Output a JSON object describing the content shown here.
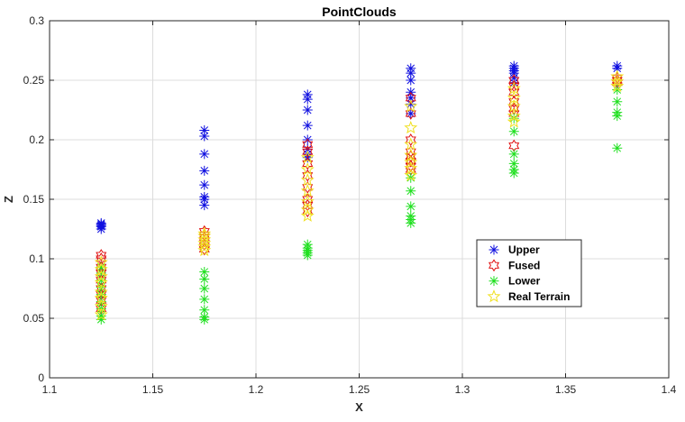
{
  "chart_data": {
    "type": "scatter",
    "title": "PointClouds",
    "xlabel": "X",
    "ylabel": "Z",
    "xlim": [
      1.1,
      1.4
    ],
    "ylim": [
      0,
      0.3
    ],
    "xticks": [
      "1.1",
      "1.15",
      "1.2",
      "1.25",
      "1.3",
      "1.35",
      "1.4"
    ],
    "yticks": [
      "0",
      "0.05",
      "0.1",
      "0.15",
      "0.2",
      "0.25",
      "0.3"
    ],
    "grid": true,
    "legend_position": "lower-right",
    "series": [
      {
        "name": "Upper",
        "marker": "asterisk",
        "color": "#1010e0",
        "points": [
          [
            1.125,
            0.125
          ],
          [
            1.125,
            0.127
          ],
          [
            1.125,
            0.128
          ],
          [
            1.125,
            0.129
          ],
          [
            1.125,
            0.13
          ],
          [
            1.175,
            0.145
          ],
          [
            1.175,
            0.15
          ],
          [
            1.175,
            0.152
          ],
          [
            1.175,
            0.162
          ],
          [
            1.175,
            0.174
          ],
          [
            1.175,
            0.188
          ],
          [
            1.175,
            0.203
          ],
          [
            1.175,
            0.208
          ],
          [
            1.225,
            0.185
          ],
          [
            1.225,
            0.188
          ],
          [
            1.225,
            0.192
          ],
          [
            1.225,
            0.2
          ],
          [
            1.225,
            0.212
          ],
          [
            1.225,
            0.225
          ],
          [
            1.225,
            0.234
          ],
          [
            1.225,
            0.238
          ],
          [
            1.275,
            0.222
          ],
          [
            1.275,
            0.23
          ],
          [
            1.275,
            0.235
          ],
          [
            1.275,
            0.24
          ],
          [
            1.275,
            0.25
          ],
          [
            1.275,
            0.256
          ],
          [
            1.275,
            0.26
          ],
          [
            1.325,
            0.248
          ],
          [
            1.325,
            0.252
          ],
          [
            1.325,
            0.256
          ],
          [
            1.325,
            0.258
          ],
          [
            1.325,
            0.26
          ],
          [
            1.325,
            0.262
          ],
          [
            1.375,
            0.26
          ],
          [
            1.375,
            0.262
          ]
        ]
      },
      {
        "name": "Fused",
        "marker": "hexagram",
        "color": "#e01010",
        "points": [
          [
            1.125,
            0.058
          ],
          [
            1.125,
            0.065
          ],
          [
            1.125,
            0.07
          ],
          [
            1.125,
            0.075
          ],
          [
            1.125,
            0.082
          ],
          [
            1.125,
            0.088
          ],
          [
            1.125,
            0.093
          ],
          [
            1.125,
            0.1
          ],
          [
            1.125,
            0.103
          ],
          [
            1.175,
            0.108
          ],
          [
            1.175,
            0.112
          ],
          [
            1.175,
            0.115
          ],
          [
            1.175,
            0.118
          ],
          [
            1.175,
            0.12
          ],
          [
            1.175,
            0.123
          ],
          [
            1.225,
            0.14
          ],
          [
            1.225,
            0.145
          ],
          [
            1.225,
            0.15
          ],
          [
            1.225,
            0.16
          ],
          [
            1.225,
            0.17
          ],
          [
            1.225,
            0.18
          ],
          [
            1.225,
            0.19
          ],
          [
            1.225,
            0.196
          ],
          [
            1.275,
            0.175
          ],
          [
            1.275,
            0.178
          ],
          [
            1.275,
            0.182
          ],
          [
            1.275,
            0.186
          ],
          [
            1.275,
            0.19
          ],
          [
            1.275,
            0.2
          ],
          [
            1.275,
            0.222
          ],
          [
            1.275,
            0.235
          ],
          [
            1.325,
            0.195
          ],
          [
            1.325,
            0.222
          ],
          [
            1.325,
            0.226
          ],
          [
            1.325,
            0.232
          ],
          [
            1.325,
            0.24
          ],
          [
            1.325,
            0.245
          ],
          [
            1.325,
            0.25
          ],
          [
            1.375,
            0.248
          ],
          [
            1.375,
            0.25
          ],
          [
            1.375,
            0.252
          ]
        ]
      },
      {
        "name": "Lower",
        "marker": "asterisk",
        "color": "#20e020",
        "points": [
          [
            1.125,
            0.049
          ],
          [
            1.125,
            0.052
          ],
          [
            1.125,
            0.058
          ],
          [
            1.125,
            0.064
          ],
          [
            1.125,
            0.07
          ],
          [
            1.125,
            0.076
          ],
          [
            1.125,
            0.082
          ],
          [
            1.125,
            0.088
          ],
          [
            1.125,
            0.093
          ],
          [
            1.175,
            0.049
          ],
          [
            1.175,
            0.051
          ],
          [
            1.175,
            0.057
          ],
          [
            1.175,
            0.066
          ],
          [
            1.175,
            0.075
          ],
          [
            1.175,
            0.083
          ],
          [
            1.175,
            0.089
          ],
          [
            1.225,
            0.103
          ],
          [
            1.225,
            0.105
          ],
          [
            1.225,
            0.107
          ],
          [
            1.225,
            0.109
          ],
          [
            1.225,
            0.112
          ],
          [
            1.275,
            0.13
          ],
          [
            1.275,
            0.133
          ],
          [
            1.275,
            0.136
          ],
          [
            1.275,
            0.144
          ],
          [
            1.275,
            0.157
          ],
          [
            1.275,
            0.168
          ],
          [
            1.325,
            0.172
          ],
          [
            1.325,
            0.175
          ],
          [
            1.325,
            0.18
          ],
          [
            1.325,
            0.188
          ],
          [
            1.325,
            0.207
          ],
          [
            1.325,
            0.218
          ],
          [
            1.375,
            0.193
          ],
          [
            1.375,
            0.22
          ],
          [
            1.375,
            0.223
          ],
          [
            1.375,
            0.232
          ],
          [
            1.375,
            0.242
          ]
        ]
      },
      {
        "name": "Real Terrain",
        "marker": "pentagram",
        "color": "#f0e020",
        "points": [
          [
            1.125,
            0.053
          ],
          [
            1.125,
            0.06
          ],
          [
            1.125,
            0.067
          ],
          [
            1.125,
            0.072
          ],
          [
            1.125,
            0.08
          ],
          [
            1.125,
            0.085
          ],
          [
            1.125,
            0.091
          ],
          [
            1.125,
            0.097
          ],
          [
            1.175,
            0.107
          ],
          [
            1.175,
            0.11
          ],
          [
            1.175,
            0.113
          ],
          [
            1.175,
            0.116
          ],
          [
            1.175,
            0.119
          ],
          [
            1.175,
            0.121
          ],
          [
            1.225,
            0.136
          ],
          [
            1.225,
            0.141
          ],
          [
            1.225,
            0.148
          ],
          [
            1.225,
            0.157
          ],
          [
            1.225,
            0.166
          ],
          [
            1.225,
            0.175
          ],
          [
            1.225,
            0.185
          ],
          [
            1.275,
            0.17
          ],
          [
            1.275,
            0.176
          ],
          [
            1.275,
            0.181
          ],
          [
            1.275,
            0.187
          ],
          [
            1.275,
            0.196
          ],
          [
            1.275,
            0.21
          ],
          [
            1.275,
            0.228
          ],
          [
            1.325,
            0.215
          ],
          [
            1.325,
            0.22
          ],
          [
            1.325,
            0.228
          ],
          [
            1.325,
            0.235
          ],
          [
            1.325,
            0.243
          ],
          [
            1.375,
            0.245
          ],
          [
            1.375,
            0.249
          ],
          [
            1.375,
            0.253
          ]
        ]
      }
    ]
  }
}
